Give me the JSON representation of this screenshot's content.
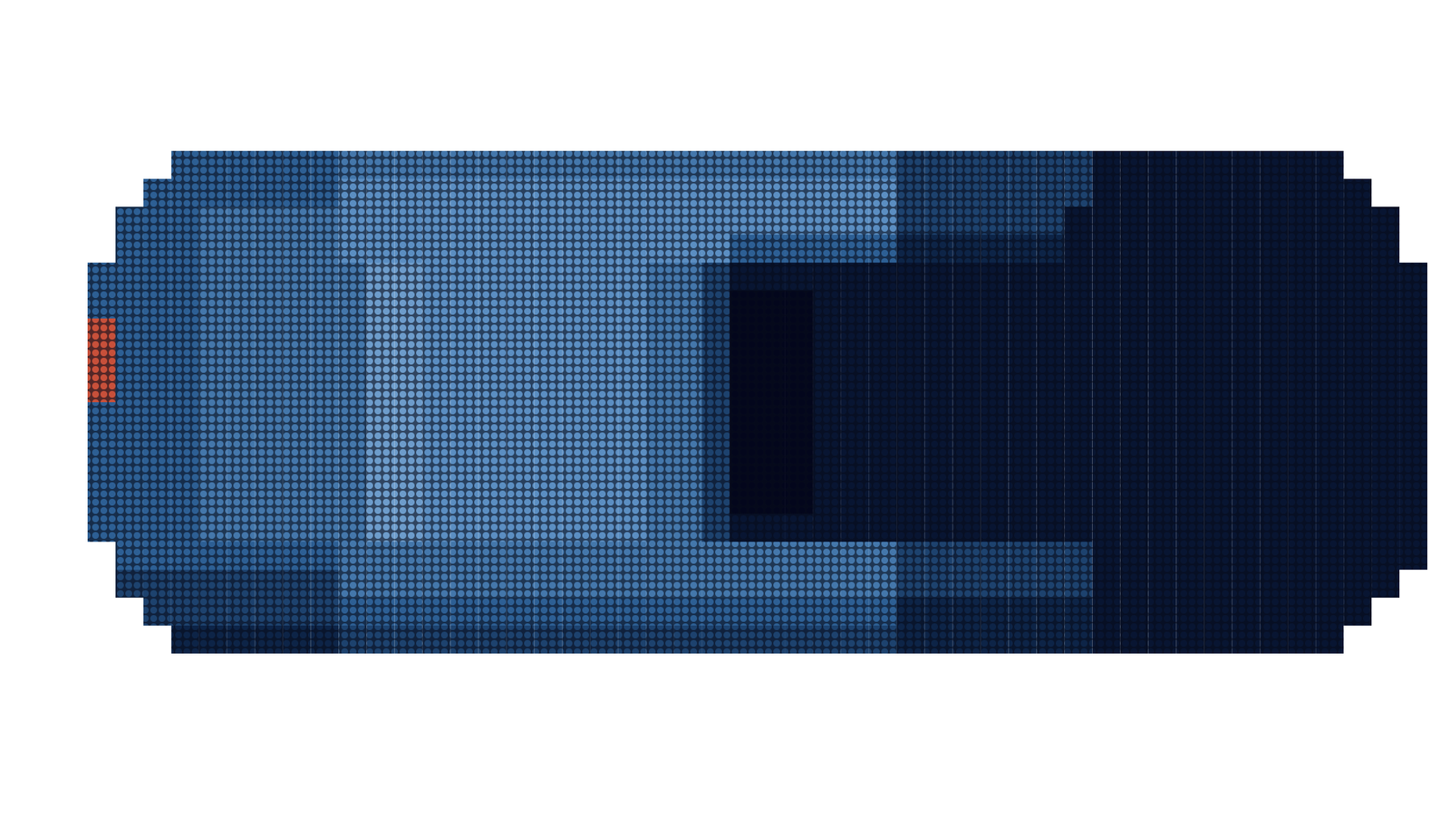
{
  "chart_data": {
    "type": "heatmap",
    "tick_labels": false,
    "zlim": [
      0,
      10
    ],
    "cells": [
      [
        null,
        null,
        null,
        4,
        4,
        4,
        4,
        4,
        4,
        5,
        5,
        5,
        5,
        5,
        5,
        5,
        5,
        5,
        5,
        5,
        5,
        5,
        5,
        5,
        5,
        5,
        5,
        5,
        5,
        3,
        3,
        3,
        3,
        3,
        3,
        3,
        1,
        1,
        1,
        1,
        1,
        1,
        1,
        1,
        1,
        null,
        null,
        null
      ],
      [
        null,
        null,
        4,
        4,
        4,
        4,
        4,
        4,
        4,
        6,
        6,
        6,
        6,
        6,
        6,
        6,
        6,
        6,
        6,
        6,
        6,
        6,
        6,
        6,
        6,
        6,
        6,
        6,
        6,
        3,
        3,
        3,
        3,
        3,
        3,
        3,
        1,
        1,
        1,
        1,
        1,
        1,
        1,
        1,
        1,
        1,
        null,
        null
      ],
      [
        null,
        4,
        4,
        4,
        5,
        5,
        5,
        5,
        5,
        6,
        6,
        6,
        6,
        6,
        6,
        6,
        6,
        6,
        6,
        6,
        6,
        6,
        6,
        6,
        6,
        6,
        6,
        6,
        6,
        3,
        3,
        3,
        3,
        3,
        3,
        1,
        1,
        1,
        1,
        1,
        1,
        1,
        1,
        1,
        1,
        1,
        1,
        null
      ],
      [
        null,
        4,
        4,
        4,
        5,
        5,
        5,
        5,
        5,
        6,
        6,
        6,
        6,
        6,
        6,
        6,
        6,
        6,
        6,
        6,
        6,
        6,
        6,
        4,
        4,
        4,
        4,
        4,
        4,
        2,
        2,
        2,
        2,
        2,
        2,
        1,
        1,
        1,
        1,
        1,
        1,
        1,
        1,
        1,
        1,
        1,
        1,
        null
      ],
      [
        4,
        4,
        4,
        4,
        5,
        5,
        5,
        5,
        5,
        5,
        7,
        7,
        6,
        6,
        6,
        6,
        6,
        6,
        6,
        6,
        5,
        5,
        3,
        1,
        1,
        1,
        1,
        1,
        1,
        1,
        1,
        1,
        1,
        1,
        1,
        1,
        1,
        1,
        1,
        1,
        1,
        1,
        1,
        1,
        1,
        1,
        1,
        1
      ],
      [
        4,
        4,
        4,
        4,
        5,
        5,
        5,
        5,
        5,
        5,
        7,
        7,
        6,
        6,
        6,
        6,
        6,
        6,
        6,
        6,
        5,
        5,
        3,
        0,
        0,
        0,
        1,
        1,
        1,
        1,
        1,
        1,
        1,
        1,
        1,
        1,
        1,
        1,
        1,
        1,
        1,
        1,
        1,
        1,
        1,
        1,
        1,
        1
      ],
      [
        10,
        4,
        4,
        4,
        5,
        5,
        5,
        5,
        5,
        5,
        7,
        7,
        6,
        6,
        6,
        6,
        6,
        6,
        6,
        6,
        5,
        5,
        3,
        0,
        0,
        0,
        1,
        1,
        1,
        1,
        1,
        1,
        1,
        1,
        1,
        1,
        1,
        1,
        1,
        1,
        1,
        1,
        1,
        1,
        1,
        1,
        1,
        1
      ],
      [
        10,
        4,
        4,
        4,
        5,
        5,
        5,
        5,
        5,
        5,
        7,
        7,
        6,
        6,
        6,
        6,
        6,
        6,
        6,
        6,
        5,
        5,
        3,
        0,
        0,
        0,
        1,
        1,
        1,
        1,
        1,
        1,
        1,
        1,
        1,
        1,
        1,
        1,
        1,
        1,
        1,
        1,
        1,
        1,
        1,
        1,
        1,
        1
      ],
      [
        10,
        4,
        4,
        4,
        5,
        5,
        5,
        5,
        5,
        5,
        7,
        7,
        6,
        6,
        6,
        6,
        6,
        6,
        6,
        6,
        5,
        5,
        3,
        0,
        0,
        0,
        1,
        1,
        1,
        1,
        1,
        1,
        1,
        1,
        1,
        1,
        1,
        1,
        1,
        1,
        1,
        1,
        1,
        1,
        1,
        1,
        1,
        1
      ],
      [
        4,
        4,
        4,
        4,
        5,
        5,
        5,
        5,
        5,
        5,
        7,
        7,
        6,
        6,
        6,
        6,
        6,
        6,
        6,
        6,
        5,
        5,
        3,
        0,
        0,
        0,
        1,
        1,
        1,
        1,
        1,
        1,
        1,
        1,
        1,
        1,
        1,
        1,
        1,
        1,
        1,
        1,
        1,
        1,
        1,
        1,
        1,
        1
      ],
      [
        4,
        4,
        4,
        4,
        5,
        5,
        5,
        5,
        5,
        5,
        7,
        7,
        6,
        6,
        6,
        6,
        6,
        6,
        6,
        6,
        5,
        5,
        3,
        0,
        0,
        0,
        1,
        1,
        1,
        1,
        1,
        1,
        1,
        1,
        1,
        1,
        1,
        1,
        1,
        1,
        1,
        1,
        1,
        1,
        1,
        1,
        1,
        1
      ],
      [
        4,
        4,
        4,
        4,
        5,
        5,
        5,
        5,
        5,
        5,
        7,
        7,
        6,
        6,
        6,
        6,
        6,
        6,
        6,
        6,
        5,
        5,
        3,
        0,
        0,
        0,
        1,
        1,
        1,
        1,
        1,
        1,
        1,
        1,
        1,
        1,
        1,
        1,
        1,
        1,
        1,
        1,
        1,
        1,
        1,
        1,
        1,
        1
      ],
      [
        4,
        4,
        4,
        4,
        5,
        5,
        5,
        5,
        5,
        5,
        7,
        7,
        6,
        6,
        6,
        6,
        6,
        6,
        6,
        6,
        5,
        5,
        3,
        0,
        0,
        0,
        1,
        1,
        1,
        1,
        1,
        1,
        1,
        1,
        1,
        1,
        1,
        1,
        1,
        1,
        1,
        1,
        1,
        1,
        1,
        1,
        1,
        1
      ],
      [
        4,
        4,
        4,
        4,
        5,
        5,
        5,
        5,
        5,
        5,
        7,
        7,
        6,
        6,
        6,
        6,
        6,
        6,
        6,
        6,
        5,
        5,
        3,
        1,
        1,
        1,
        1,
        1,
        1,
        1,
        1,
        1,
        1,
        1,
        1,
        1,
        1,
        1,
        1,
        1,
        1,
        1,
        1,
        1,
        1,
        1,
        1,
        1
      ],
      [
        null,
        4,
        4,
        4,
        4,
        4,
        4,
        4,
        4,
        5,
        5,
        5,
        5,
        5,
        5,
        5,
        5,
        5,
        5,
        5,
        5,
        5,
        5,
        5,
        5,
        5,
        5,
        5,
        5,
        3,
        3,
        3,
        3,
        3,
        3,
        3,
        1,
        1,
        1,
        1,
        1,
        1,
        1,
        1,
        1,
        1,
        1,
        1
      ],
      [
        null,
        3,
        3,
        3,
        3,
        3,
        3,
        3,
        3,
        5,
        5,
        5,
        5,
        5,
        5,
        5,
        5,
        5,
        5,
        5,
        5,
        5,
        5,
        5,
        5,
        5,
        5,
        5,
        5,
        3,
        3,
        3,
        3,
        3,
        3,
        3,
        1,
        1,
        1,
        1,
        1,
        1,
        1,
        1,
        1,
        1,
        1,
        null
      ],
      [
        null,
        null,
        3,
        3,
        3,
        3,
        3,
        3,
        3,
        4,
        4,
        4,
        4,
        4,
        4,
        4,
        4,
        4,
        4,
        4,
        4,
        4,
        4,
        4,
        4,
        4,
        4,
        4,
        4,
        2,
        2,
        2,
        2,
        2,
        2,
        2,
        1,
        1,
        1,
        1,
        1,
        1,
        1,
        1,
        1,
        1,
        null,
        null
      ],
      [
        null,
        null,
        null,
        2,
        2,
        2,
        2,
        2,
        2,
        3,
        3,
        3,
        3,
        3,
        3,
        3,
        3,
        3,
        3,
        3,
        3,
        3,
        3,
        3,
        3,
        3,
        3,
        3,
        3,
        2,
        2,
        2,
        2,
        2,
        2,
        2,
        1,
        1,
        1,
        1,
        1,
        1,
        1,
        1,
        1,
        null,
        null,
        null
      ]
    ]
  }
}
